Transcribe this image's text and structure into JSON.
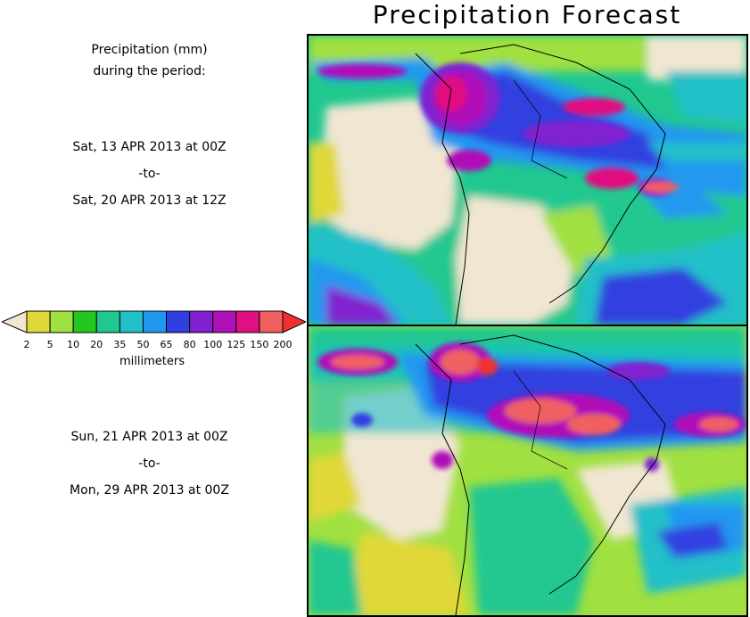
{
  "title": "Precipitation Forecast",
  "left_panel": {
    "heading_line1": "Precipitation (mm)",
    "heading_line2": "during the period:",
    "period1": {
      "start": "Sat, 13 APR 2013 at 00Z",
      "sep": "-to-",
      "end": "Sat, 20 APR 2013 at 12Z"
    },
    "period2": {
      "start": "Sun, 21 APR 2013 at 00Z",
      "sep": "-to-",
      "end": "Mon, 29 APR 2013 at 00Z"
    }
  },
  "legend": {
    "units": "millimeters",
    "ticks": [
      "2",
      "5",
      "10",
      "20",
      "35",
      "50",
      "65",
      "80",
      "100",
      "125",
      "150",
      "200"
    ],
    "colors": [
      "#f0e6d2",
      "#e0d838",
      "#a0e040",
      "#20c820",
      "#20c890",
      "#20c0c8",
      "#2098f0",
      "#3040e0",
      "#8020d0",
      "#b010b8",
      "#e01080",
      "#f06060",
      "#f03030"
    ]
  }
}
